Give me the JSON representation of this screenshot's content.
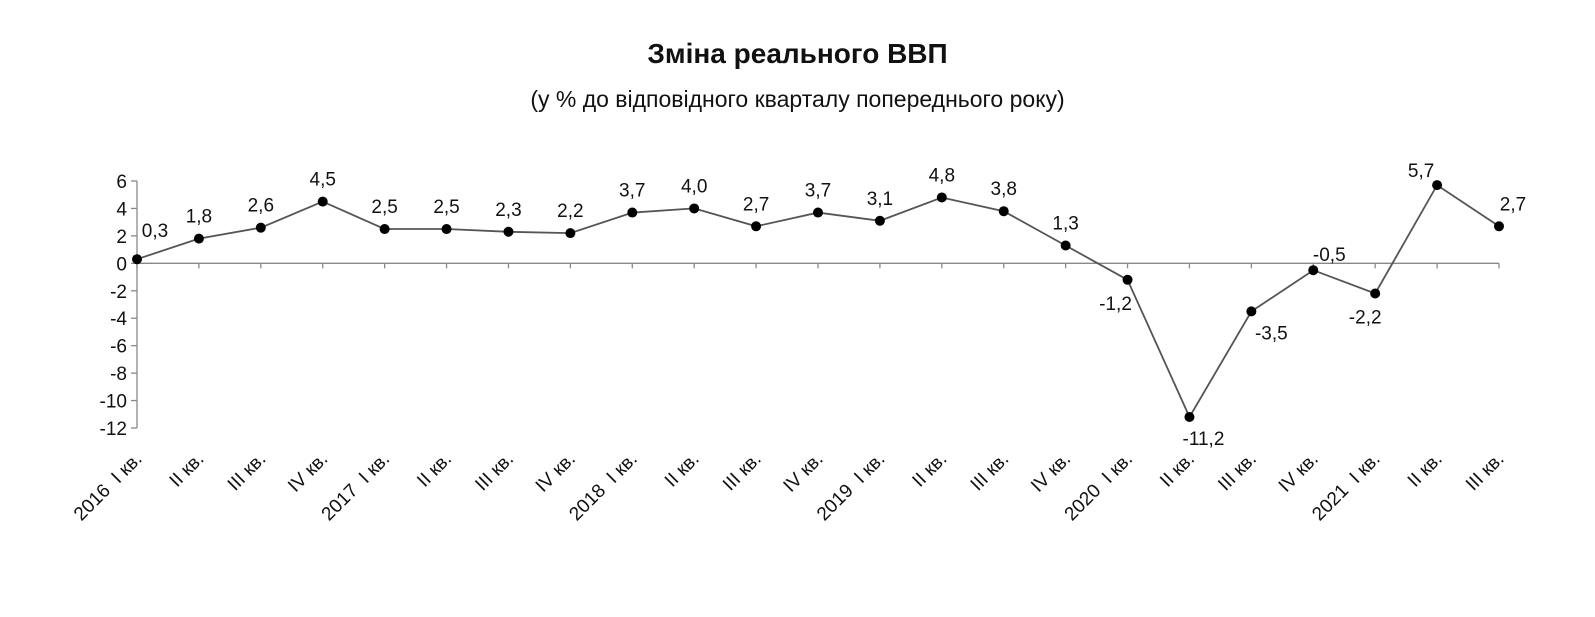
{
  "chart_data": {
    "type": "line",
    "title": "Зміна реального ВВП",
    "subtitle": "(у % до відповідного кварталу попереднього року)",
    "categories": [
      "2016  І кв.",
      "ІІ кв.",
      "ІІІ кв.",
      "IV кв.",
      "2017  І кв.",
      "ІІ кв.",
      "ІІІ кв.",
      "IV кв.",
      "2018  І кв.",
      "ІІ кв.",
      "ІІІ кв.",
      "IV кв.",
      "2019  І кв.",
      "ІІ кв.",
      "ІІІ кв.",
      "IV кв.",
      "2020  І кв.",
      "ІІ кв.",
      "ІІІ кв.",
      "IV кв.",
      "2021  І кв.",
      "ІІ кв.",
      "ІІІ кв."
    ],
    "series": [
      {
        "values": [
          0.3,
          1.8,
          2.6,
          4.5,
          2.5,
          2.5,
          2.3,
          2.2,
          3.7,
          4.0,
          2.7,
          3.7,
          3.1,
          4.8,
          3.8,
          1.3,
          -1.2,
          -11.2,
          -3.5,
          -0.5,
          -2.2,
          5.7,
          2.7
        ],
        "labels": [
          "0,3",
          "1,8",
          "2,6",
          "4,5",
          "2,5",
          "2,5",
          "2,3",
          "2,2",
          "3,7",
          "4,0",
          "2,7",
          "3,7",
          "3,1",
          "4,8",
          "3,8",
          "1,3",
          "-1,2",
          "-11,2",
          "-3,5",
          "-0,5",
          "-2,2",
          "5,7",
          "2,7"
        ]
      }
    ],
    "ylim": [
      -12,
      6
    ],
    "yticks": [
      6,
      4,
      2,
      0,
      -2,
      -4,
      -6,
      -8,
      -10,
      -12
    ],
    "ytick_labels": [
      "6",
      "4",
      "2",
      "0",
      "-2",
      "-4",
      "-6",
      "-8",
      "-10",
      "-12"
    ],
    "grid": false,
    "xlabel": "",
    "ylabel": "",
    "colors": {
      "line": "#555555",
      "marker": "#000000",
      "axis": "#888888",
      "text": "#111111"
    }
  }
}
